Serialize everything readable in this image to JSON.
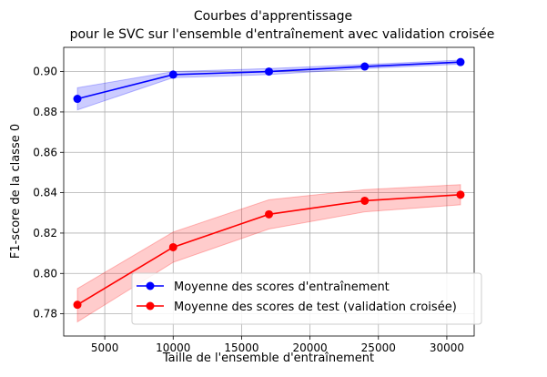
{
  "chart_data": {
    "type": "line",
    "title": "Courbes d'apprentissage",
    "subtitle": "pour le SVC sur l'ensemble d'entraînement avec validation croisée",
    "xlabel": "Taille de l'ensemble d'entraînement",
    "ylabel": "F1-score de la classe 0",
    "xlim": [
      2000,
      32000
    ],
    "ylim": [
      0.769,
      0.912
    ],
    "xticks": [
      5000,
      10000,
      15000,
      20000,
      25000,
      30000
    ],
    "yticks": [
      0.78,
      0.8,
      0.82,
      0.84,
      0.86,
      0.88,
      0.9
    ],
    "grid": true,
    "legend_position": "lower-right",
    "x": [
      3000,
      10000,
      17000,
      24000,
      31000
    ],
    "series": [
      {
        "name": "Moyenne des scores d'entraînement",
        "color": "#0000ff",
        "band_color": "#0000ff",
        "values": [
          0.8865,
          0.8985,
          0.9,
          0.9025,
          0.9047
        ],
        "upper": [
          0.892,
          0.9,
          0.9015,
          0.9035,
          0.9057
        ],
        "lower": [
          0.881,
          0.897,
          0.8985,
          0.9015,
          0.9037
        ]
      },
      {
        "name": "Moyenne des scores de test (validation croisée)",
        "color": "#ff0000",
        "band_color": "#ff0000",
        "values": [
          0.7845,
          0.813,
          0.8293,
          0.836,
          0.839
        ],
        "upper": [
          0.7925,
          0.8205,
          0.8365,
          0.8415,
          0.844
        ],
        "lower": [
          0.776,
          0.8055,
          0.822,
          0.8305,
          0.834
        ]
      }
    ]
  }
}
